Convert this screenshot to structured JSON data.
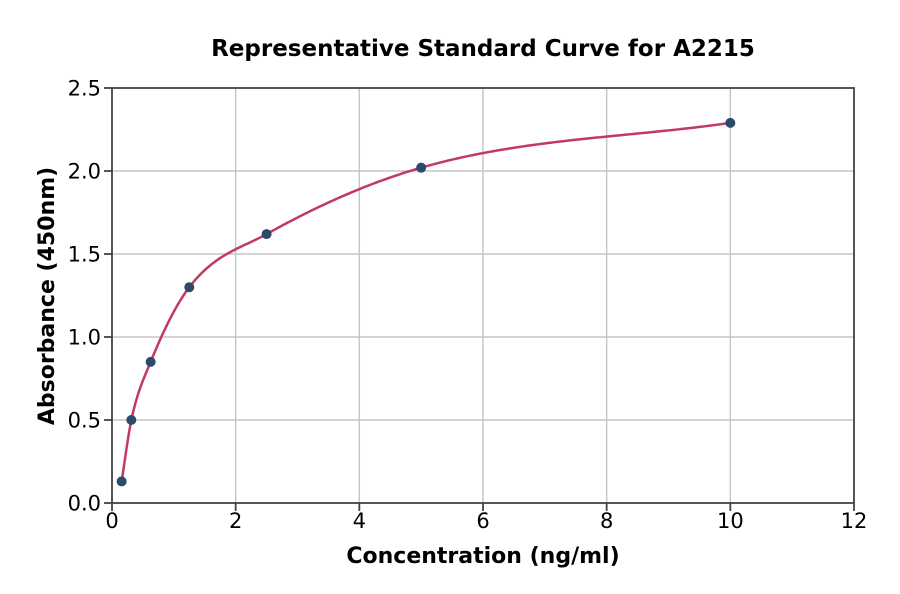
{
  "chart_data": {
    "type": "scatter",
    "title": "Representative Standard Curve for A2215",
    "xlabel": "Concentration (ng/ml)",
    "ylabel": "Absorbance (450nm)",
    "x": [
      0.156,
      0.3125,
      0.625,
      1.25,
      2.5,
      5,
      10
    ],
    "y": [
      0.13,
      0.5,
      0.85,
      1.3,
      1.62,
      2.02,
      2.29
    ],
    "fit_curve": "smooth saturating curve through data points, from first point to last point",
    "xlim": [
      0,
      12
    ],
    "ylim": [
      0,
      2.5
    ],
    "xticks": [
      0,
      2,
      4,
      6,
      8,
      10,
      12
    ],
    "xtick_labels": [
      "0",
      "2",
      "4",
      "6",
      "8",
      "10",
      "12"
    ],
    "yticks": [
      0,
      0.5,
      1,
      1.5,
      2,
      2.5
    ],
    "ytick_labels": [
      "0.0",
      "0.5",
      "1.0",
      "1.5",
      "2.0",
      "2.5"
    ],
    "grid": true,
    "legend": "none",
    "colors": {
      "line": "#c23a60",
      "marker": "#2e4a6b",
      "grid": "#c5c5c5",
      "spine": "#434343",
      "text": "#000000",
      "background": "#ffffff"
    }
  }
}
